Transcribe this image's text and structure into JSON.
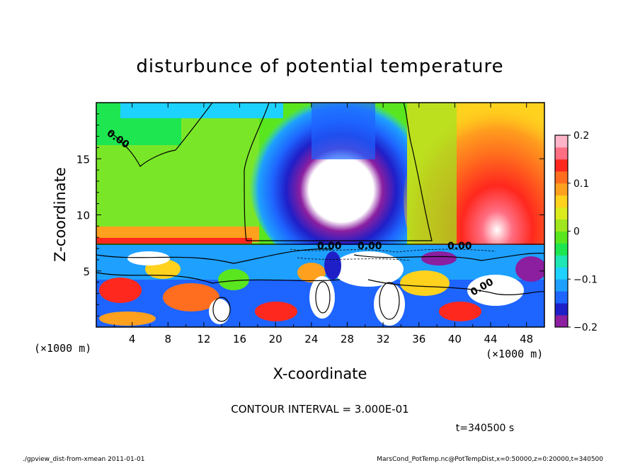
{
  "chart_data": {
    "type": "heatmap",
    "title": "disturbunce of potential temperature",
    "xlabel": "X-coordinate",
    "ylabel": "Z-coordinate",
    "x_units_left": "(×1000 m)",
    "x_units_right": "(×1000 m)",
    "xlim": [
      0,
      50
    ],
    "ylim": [
      0,
      20
    ],
    "x_ticks": [
      "4",
      "8",
      "12",
      "16",
      "20",
      "24",
      "28",
      "32",
      "36",
      "40",
      "44",
      "48"
    ],
    "y_ticks": [
      "5",
      "10",
      "15"
    ],
    "colorbar": {
      "range": [
        -0.2,
        0.2
      ],
      "tick_labels": [
        "0.2",
        "0.1",
        "0",
        "−0.1",
        "−0.2"
      ],
      "colors": [
        "#8b1fa0",
        "#1f1fc8",
        "#1e64ff",
        "#1ea0ff",
        "#1ed2ff",
        "#1ee6b4",
        "#1ee650",
        "#5ae61e",
        "#a0e61e",
        "#dceb1e",
        "#ffd21e",
        "#ffa01e",
        "#ff6e1e",
        "#ff281e",
        "#ff6e82",
        "#ffb4c8"
      ]
    },
    "contour_labels": [
      "0.00",
      "0.00",
      "0.00",
      "0.00",
      "0.00"
    ],
    "contour_interval_text": "CONTOUR INTERVAL = 3.000E-01",
    "time_text": "t=340500 s"
  },
  "footer": {
    "left": "./gpview_dist-from-xmean  2011-01-01",
    "right": "MarsCond_PotTemp.nc@PotTempDist,x=0:50000,z=0:20000,t=340500"
  }
}
